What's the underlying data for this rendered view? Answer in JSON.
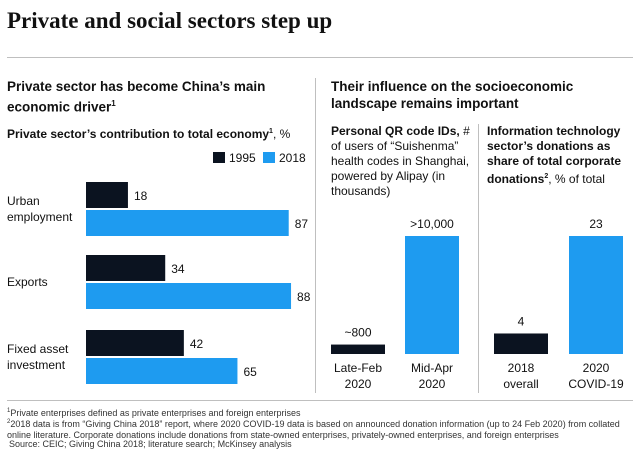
{
  "title": "Private and social sectors step up",
  "left_panel": {
    "heading": "Private sector has become China’s main economic driver",
    "heading_sup": "1",
    "subtitle_bold": "Private sector’s contribution to total economy",
    "subtitle_sup": "1",
    "subtitle_unit": ", %"
  },
  "right_panel": {
    "heading": "Their influence on the socioeconomic landscape remains important",
    "qr": {
      "title_bold": "Personal QR code IDs,",
      "title_rest": "# of users of “Suishenma” health codes in Shanghai, powered by Alipay (in thousands)"
    },
    "it": {
      "title_bold": "Information technology sector’s donations as share of total corporate donations",
      "title_sup": "2",
      "title_unit": ", % of total"
    }
  },
  "colors": {
    "dark": "#0b1320",
    "light": "#1e9bf0"
  },
  "chart_data": [
    {
      "type": "bar",
      "orientation": "horizontal",
      "categories": [
        "Urban employment",
        "Exports",
        "Fixed asset investment"
      ],
      "category_lines": [
        [
          "Urban",
          "employment"
        ],
        [
          "Exports"
        ],
        [
          "Fixed asset",
          "investment"
        ]
      ],
      "series": [
        {
          "name": "1995",
          "values": [
            18,
            34,
            42
          ],
          "labels": [
            "18",
            "34",
            "42"
          ]
        },
        {
          "name": "2018",
          "values": [
            87,
            88,
            65
          ],
          "labels": [
            "87",
            "88",
            "65"
          ]
        }
      ],
      "xlim": [
        0,
        100
      ],
      "legend": "top-right"
    },
    {
      "type": "bar",
      "categories": [
        "Late-Feb 2020",
        "Mid-Apr 2020"
      ],
      "category_lines": [
        [
          "Late-Feb",
          "2020"
        ],
        [
          "Mid-Apr",
          "2020"
        ]
      ],
      "values": [
        800,
        10000
      ],
      "labels": [
        "~800",
        ">10,000"
      ],
      "ylim": [
        0,
        10000
      ]
    },
    {
      "type": "bar",
      "categories": [
        "2018 overall",
        "2020 COVID-19"
      ],
      "category_lines": [
        [
          "2018",
          "overall"
        ],
        [
          "2020",
          "COVID-19"
        ]
      ],
      "values": [
        4,
        23
      ],
      "labels": [
        "4",
        "23"
      ],
      "ylim": [
        0,
        23
      ]
    }
  ],
  "footnotes": [
    "Private enterprises defined as private enterprises and foreign enterprises",
    "2018 data is from “Giving China 2018” report, where 2020 COVID-19 data is based on announced donation information (up to 24 Feb 2020) from collated online literature. Corporate donations include donations from state-owned enterprises, privately-owned enterprises, and foreign enterprises",
    "Source: CEIC; Giving China 2018; literature search; McKinsey analysis"
  ]
}
